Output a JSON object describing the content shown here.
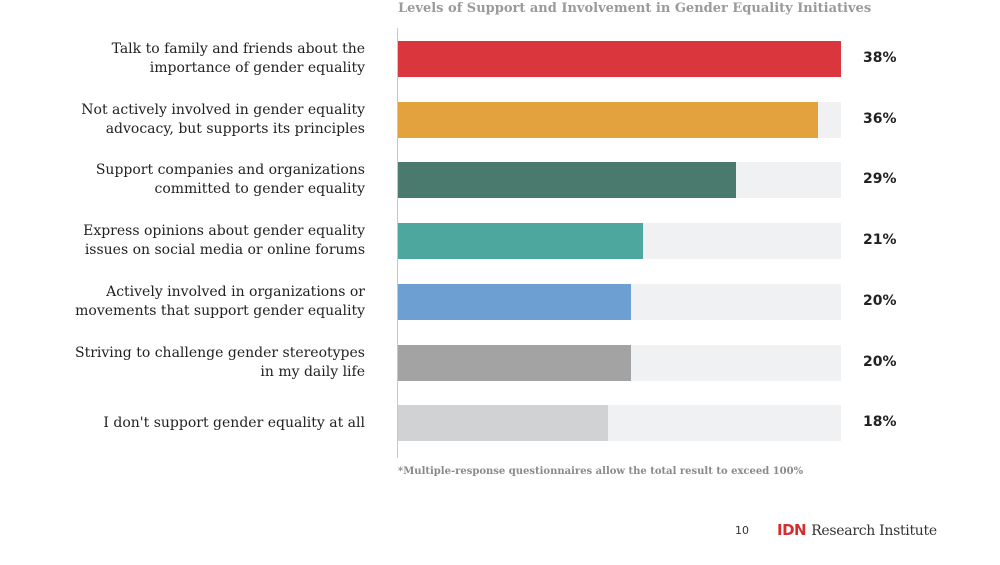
{
  "chart_data": {
    "type": "bar",
    "orientation": "horizontal",
    "title": "Levels of Support and Involvement in Gender Equality Initiatives",
    "xlim": [
      0,
      38
    ],
    "categories": [
      "Talk to family and friends about the importance of gender equality",
      "Not actively involved in gender equality advocacy, but supports its principles",
      "Support companies and organizations committed to gender equality",
      "Express opinions about gender equality issues on social media or online forums",
      "Actively involved in organizations or movements that support gender equality",
      "Striving to challenge gender stereotypes in my daily life",
      "I don't support gender equality at all"
    ],
    "label_lines": [
      [
        "Talk to family and friends about the",
        "importance of gender equality"
      ],
      [
        "Not actively involved in gender equality",
        "advocacy, but supports its principles"
      ],
      [
        "Support companies and organizations",
        "committed to gender equality"
      ],
      [
        "Express opinions about gender equality",
        "issues on social media or online forums"
      ],
      [
        "Actively involved in organizations or",
        "movements that support gender equality"
      ],
      [
        "Striving to challenge gender stereotypes",
        "in my daily life"
      ],
      [
        "I don't support gender equality at all"
      ]
    ],
    "values": [
      38,
      36,
      29,
      21,
      20,
      20,
      18
    ],
    "value_labels": [
      "38%",
      "36%",
      "29%",
      "21%",
      "20%",
      "20%",
      "18%"
    ],
    "colors": [
      "#d9363e",
      "#e4a23f",
      "#4a7a6e",
      "#4ea79f",
      "#6d9fd3",
      "#a3a3a3",
      "#d1d2d4"
    ],
    "footnote": "*Multiple-response questionnaires allow the total result to exceed 100%"
  },
  "footer": {
    "page_number": "10",
    "logo_mark": "IDN",
    "logo_text": "Research Institute"
  }
}
